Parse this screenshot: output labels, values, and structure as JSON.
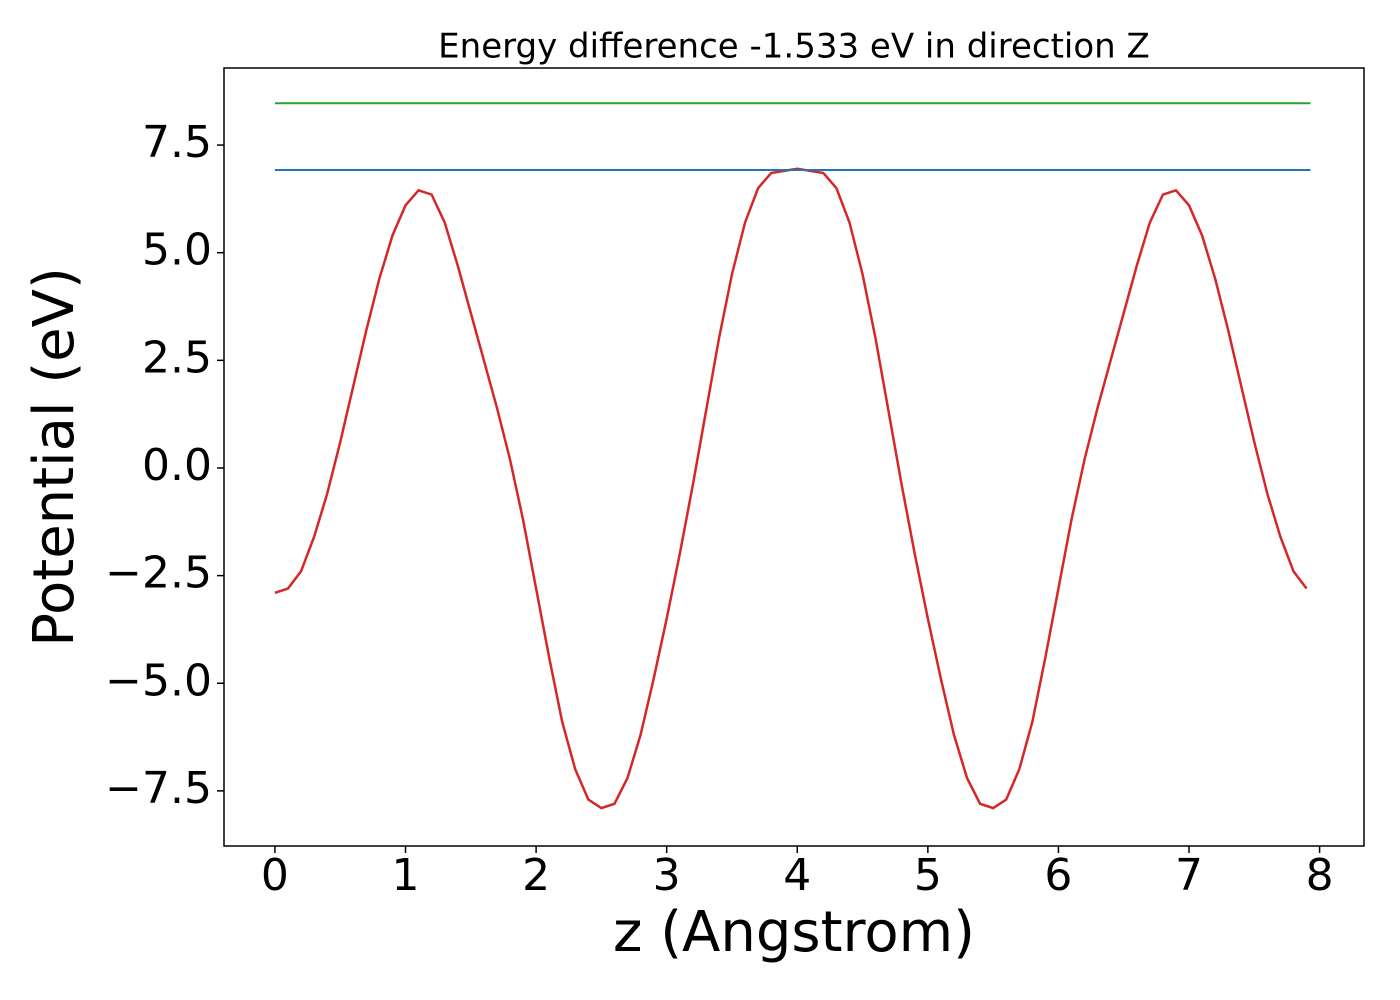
{
  "chart_data": {
    "type": "line",
    "title": "Energy difference -1.533 eV in direction Z",
    "x_label": "z (Angstrom)",
    "y_label": "Potential (eV)",
    "xlim": [
      -0.39,
      8.34
    ],
    "ylim": [
      -8.78,
      9.29
    ],
    "xticks": [
      0,
      1,
      2,
      3,
      4,
      5,
      6,
      7,
      8
    ],
    "yticks": [
      {
        "value": -7.5,
        "label": "−7.5"
      },
      {
        "value": -5.0,
        "label": "−5.0"
      },
      {
        "value": -2.5,
        "label": "−2.5"
      },
      {
        "value": 0,
        "label": "0.0"
      },
      2.5,
      {
        "value": 5.0,
        "label": "5.0"
      },
      7.5
    ],
    "grid": false,
    "series": [
      {
        "color": "#d62728",
        "x": [
          0.0,
          0.1,
          0.2,
          0.3,
          0.4,
          0.5,
          0.6,
          0.7,
          0.8,
          0.9,
          1.0,
          1.1,
          1.2,
          1.3,
          1.4,
          1.5,
          1.6,
          1.7,
          1.8,
          1.9,
          2.0,
          2.1,
          2.2,
          2.3,
          2.4,
          2.5,
          2.6,
          2.7,
          2.8,
          2.9,
          3.0,
          3.1,
          3.2,
          3.3,
          3.4,
          3.5,
          3.6,
          3.7,
          3.8,
          3.9,
          4.0,
          4.1,
          4.2,
          4.3,
          4.4,
          4.5,
          4.6,
          4.7,
          4.8,
          4.9,
          5.0,
          5.1,
          5.2,
          5.3,
          5.4,
          5.5,
          5.6,
          5.7,
          5.8,
          5.9,
          6.0,
          6.1,
          6.2,
          6.3,
          6.4,
          6.5,
          6.6,
          6.7,
          6.8,
          6.9,
          7.0,
          7.1,
          7.2,
          7.3,
          7.4,
          7.5,
          7.6,
          7.7,
          7.8,
          7.9
        ],
        "values": [
          -2.9,
          -2.8,
          -2.4,
          -1.6,
          -0.6,
          0.6,
          1.9,
          3.2,
          4.4,
          5.4,
          6.1,
          6.45,
          6.35,
          5.7,
          4.7,
          3.6,
          2.5,
          1.4,
          0.2,
          -1.2,
          -2.8,
          -4.4,
          -5.9,
          -7.0,
          -7.7,
          -7.9,
          -7.8,
          -7.2,
          -6.2,
          -4.9,
          -3.5,
          -2.0,
          -0.4,
          1.3,
          3.0,
          4.5,
          5.7,
          6.5,
          6.85,
          6.9,
          6.95,
          6.9,
          6.85,
          6.5,
          5.7,
          4.5,
          3.0,
          1.3,
          -0.4,
          -2.0,
          -3.5,
          -4.9,
          -6.2,
          -7.2,
          -7.8,
          -7.9,
          -7.7,
          -7.0,
          -5.9,
          -4.4,
          -2.8,
          -1.2,
          0.2,
          1.4,
          2.5,
          3.6,
          4.7,
          5.7,
          6.35,
          6.45,
          6.1,
          5.4,
          4.4,
          3.2,
          1.9,
          0.6,
          -0.6,
          -1.6,
          -2.4,
          -2.8
        ]
      },
      {
        "color": "#1f77b4",
        "x": [
          0,
          7.93
        ],
        "values": [
          6.92,
          6.92
        ]
      },
      {
        "color": "#2ca02c",
        "x": [
          0,
          7.93
        ],
        "values": [
          8.47,
          8.47
        ]
      }
    ]
  }
}
